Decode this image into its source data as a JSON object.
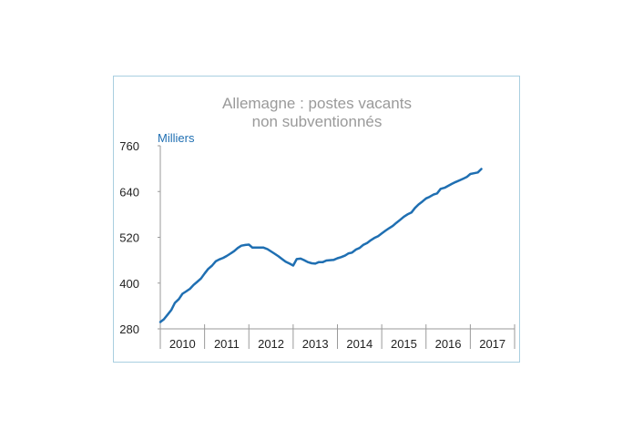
{
  "chart_data": {
    "type": "line",
    "title": "Allemagne : postes vacants",
    "subtitle": "non subventionnés",
    "ylabel": "Milliers",
    "xlabel": "",
    "ylim": [
      280,
      760
    ],
    "yticks": [
      280,
      400,
      520,
      640,
      760
    ],
    "categories": [
      "2010",
      "2011",
      "2012",
      "2013",
      "2014",
      "2015",
      "2016",
      "2017"
    ],
    "grid": false,
    "legend": "none",
    "color": "#1f6fb2",
    "series": [
      {
        "values": [
          [
            2010.0,
            298
          ],
          [
            2010.08,
            305
          ],
          [
            2010.17,
            318
          ],
          [
            2010.25,
            330
          ],
          [
            2010.33,
            348
          ],
          [
            2010.42,
            358
          ],
          [
            2010.5,
            372
          ],
          [
            2010.58,
            378
          ],
          [
            2010.67,
            385
          ],
          [
            2010.75,
            395
          ],
          [
            2010.83,
            403
          ],
          [
            2010.92,
            412
          ],
          [
            2011.0,
            425
          ],
          [
            2011.08,
            437
          ],
          [
            2011.17,
            446
          ],
          [
            2011.25,
            457
          ],
          [
            2011.33,
            462
          ],
          [
            2011.42,
            466
          ],
          [
            2011.5,
            471
          ],
          [
            2011.58,
            477
          ],
          [
            2011.67,
            484
          ],
          [
            2011.75,
            492
          ],
          [
            2011.83,
            498
          ],
          [
            2011.92,
            500
          ],
          [
            2012.0,
            501
          ],
          [
            2012.08,
            493
          ],
          [
            2012.17,
            493
          ],
          [
            2012.25,
            493
          ],
          [
            2012.33,
            493
          ],
          [
            2012.42,
            489
          ],
          [
            2012.5,
            483
          ],
          [
            2012.58,
            477
          ],
          [
            2012.67,
            470
          ],
          [
            2012.75,
            463
          ],
          [
            2012.83,
            456
          ],
          [
            2012.92,
            451
          ],
          [
            2013.0,
            446
          ],
          [
            2013.08,
            463
          ],
          [
            2013.17,
            464
          ],
          [
            2013.25,
            460
          ],
          [
            2013.33,
            455
          ],
          [
            2013.42,
            452
          ],
          [
            2013.5,
            451
          ],
          [
            2013.58,
            455
          ],
          [
            2013.67,
            455
          ],
          [
            2013.75,
            459
          ],
          [
            2013.83,
            460
          ],
          [
            2013.92,
            461
          ],
          [
            2014.0,
            465
          ],
          [
            2014.08,
            468
          ],
          [
            2014.17,
            472
          ],
          [
            2014.25,
            478
          ],
          [
            2014.33,
            480
          ],
          [
            2014.42,
            488
          ],
          [
            2014.5,
            492
          ],
          [
            2014.58,
            500
          ],
          [
            2014.67,
            505
          ],
          [
            2014.75,
            512
          ],
          [
            2014.83,
            518
          ],
          [
            2014.92,
            523
          ],
          [
            2015.0,
            530
          ],
          [
            2015.08,
            537
          ],
          [
            2015.17,
            544
          ],
          [
            2015.25,
            550
          ],
          [
            2015.33,
            558
          ],
          [
            2015.42,
            566
          ],
          [
            2015.5,
            574
          ],
          [
            2015.58,
            580
          ],
          [
            2015.67,
            585
          ],
          [
            2015.75,
            597
          ],
          [
            2015.83,
            606
          ],
          [
            2015.92,
            614
          ],
          [
            2016.0,
            622
          ],
          [
            2016.08,
            626
          ],
          [
            2016.17,
            632
          ],
          [
            2016.25,
            635
          ],
          [
            2016.33,
            647
          ],
          [
            2016.42,
            650
          ],
          [
            2016.5,
            655
          ],
          [
            2016.58,
            660
          ],
          [
            2016.67,
            665
          ],
          [
            2016.75,
            669
          ],
          [
            2016.83,
            673
          ],
          [
            2016.92,
            678
          ],
          [
            2017.0,
            686
          ],
          [
            2017.08,
            688
          ],
          [
            2017.17,
            690
          ],
          [
            2017.25,
            699
          ]
        ]
      }
    ]
  }
}
